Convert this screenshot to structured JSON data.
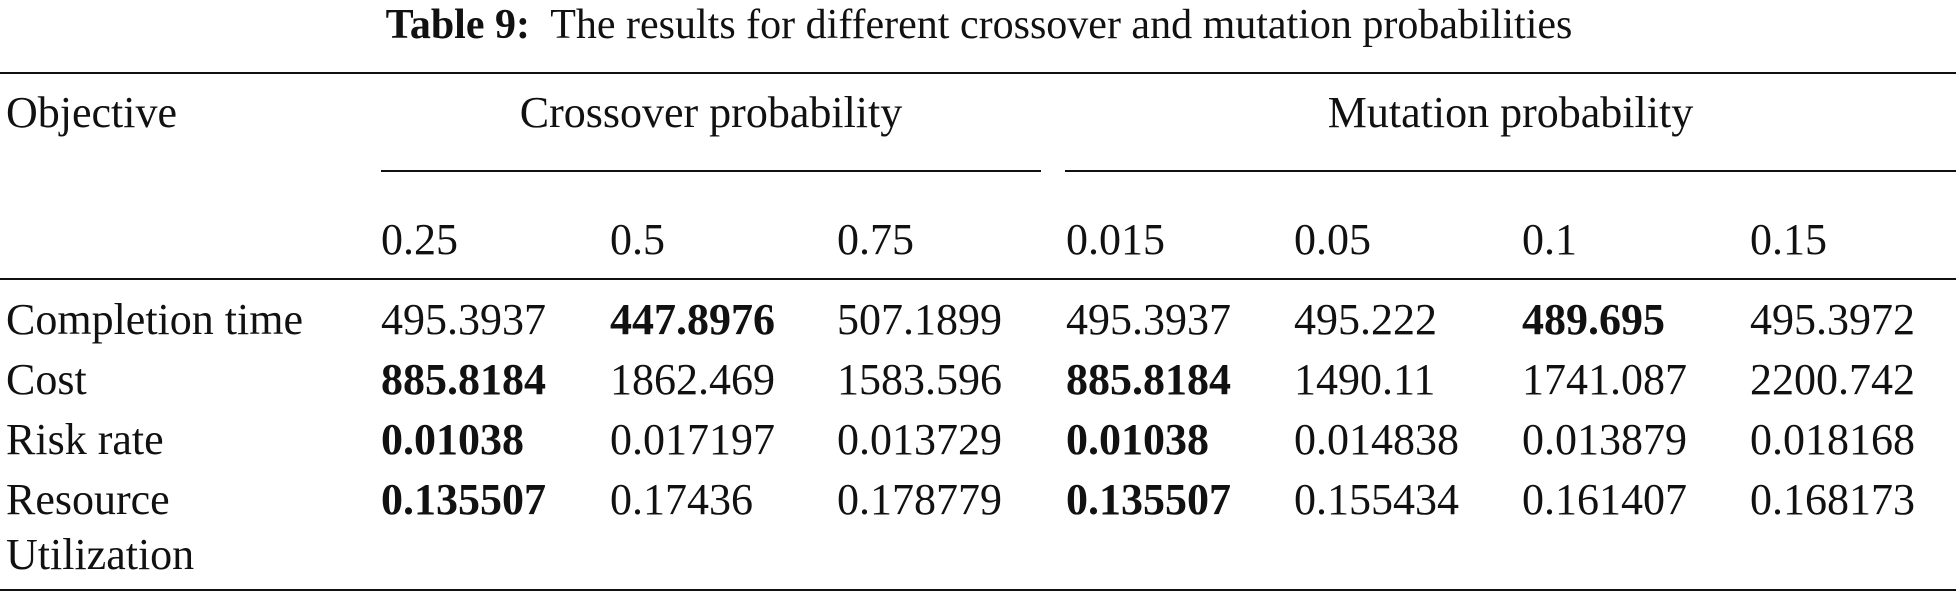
{
  "table": {
    "caption": {
      "label": "Table 9:",
      "text": "The results for different crossover and mutation probabilities"
    },
    "header": {
      "objective": "Objective",
      "groups": [
        "Crossover probability",
        "Mutation probability"
      ],
      "values": [
        0.25,
        0.5,
        0.75,
        0.015,
        0.05,
        0.1,
        0.15
      ]
    },
    "rows": [
      {
        "label": "Completion time",
        "values": [
          495.3937,
          447.8976,
          507.1899,
          495.3937,
          495.222,
          489.695,
          495.3972
        ],
        "bold": [
          false,
          true,
          false,
          false,
          false,
          true,
          false
        ]
      },
      {
        "label": "Cost",
        "values": [
          885.8184,
          1862.469,
          1583.596,
          885.8184,
          1490.11,
          1741.087,
          2200.742
        ],
        "bold": [
          true,
          false,
          false,
          true,
          false,
          false,
          false
        ]
      },
      {
        "label": "Risk rate",
        "values": [
          0.01038,
          0.017197,
          0.013729,
          0.01038,
          0.014838,
          0.013879,
          0.018168
        ],
        "bold": [
          true,
          false,
          false,
          true,
          false,
          false,
          false
        ]
      },
      {
        "label": "Resource Utilization",
        "values": [
          0.135507,
          0.17436,
          0.178779,
          0.135507,
          0.155434,
          0.161407,
          0.168173
        ],
        "bold": [
          true,
          false,
          false,
          true,
          false,
          false,
          false
        ]
      }
    ]
  }
}
